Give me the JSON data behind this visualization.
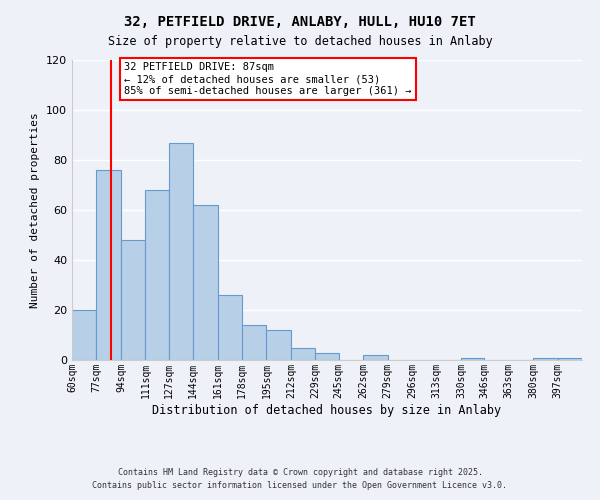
{
  "title": "32, PETFIELD DRIVE, ANLABY, HULL, HU10 7ET",
  "subtitle": "Size of property relative to detached houses in Anlaby",
  "xlabel": "Distribution of detached houses by size in Anlaby",
  "ylabel": "Number of detached properties",
  "bar_labels": [
    "60sqm",
    "77sqm",
    "94sqm",
    "111sqm",
    "127sqm",
    "144sqm",
    "161sqm",
    "178sqm",
    "195sqm",
    "212sqm",
    "229sqm",
    "245sqm",
    "262sqm",
    "279sqm",
    "296sqm",
    "313sqm",
    "330sqm",
    "346sqm",
    "363sqm",
    "380sqm",
    "397sqm"
  ],
  "bar_values": [
    20,
    76,
    48,
    68,
    87,
    62,
    26,
    14,
    12,
    5,
    3,
    0,
    2,
    0,
    0,
    0,
    1,
    0,
    0,
    1,
    1
  ],
  "bar_color": "#b8cfe8",
  "bar_edge_color": "#6699cc",
  "red_line_x": 87,
  "annotation_title": "32 PETFIELD DRIVE: 87sqm",
  "annotation_line1": "← 12% of detached houses are smaller (53)",
  "annotation_line2": "85% of semi-detached houses are larger (361) →",
  "ylim": [
    0,
    120
  ],
  "yticks": [
    0,
    20,
    40,
    60,
    80,
    100,
    120
  ],
  "background_color": "#eef2f8",
  "grid_color": "#ffffff",
  "footer1": "Contains HM Land Registry data © Crown copyright and database right 2025.",
  "footer2": "Contains public sector information licensed under the Open Government Licence v3.0.",
  "bin_edges": [
    60,
    77,
    94,
    111,
    127,
    144,
    161,
    178,
    195,
    212,
    229,
    245,
    262,
    279,
    296,
    313,
    330,
    346,
    363,
    380,
    397,
    414
  ]
}
